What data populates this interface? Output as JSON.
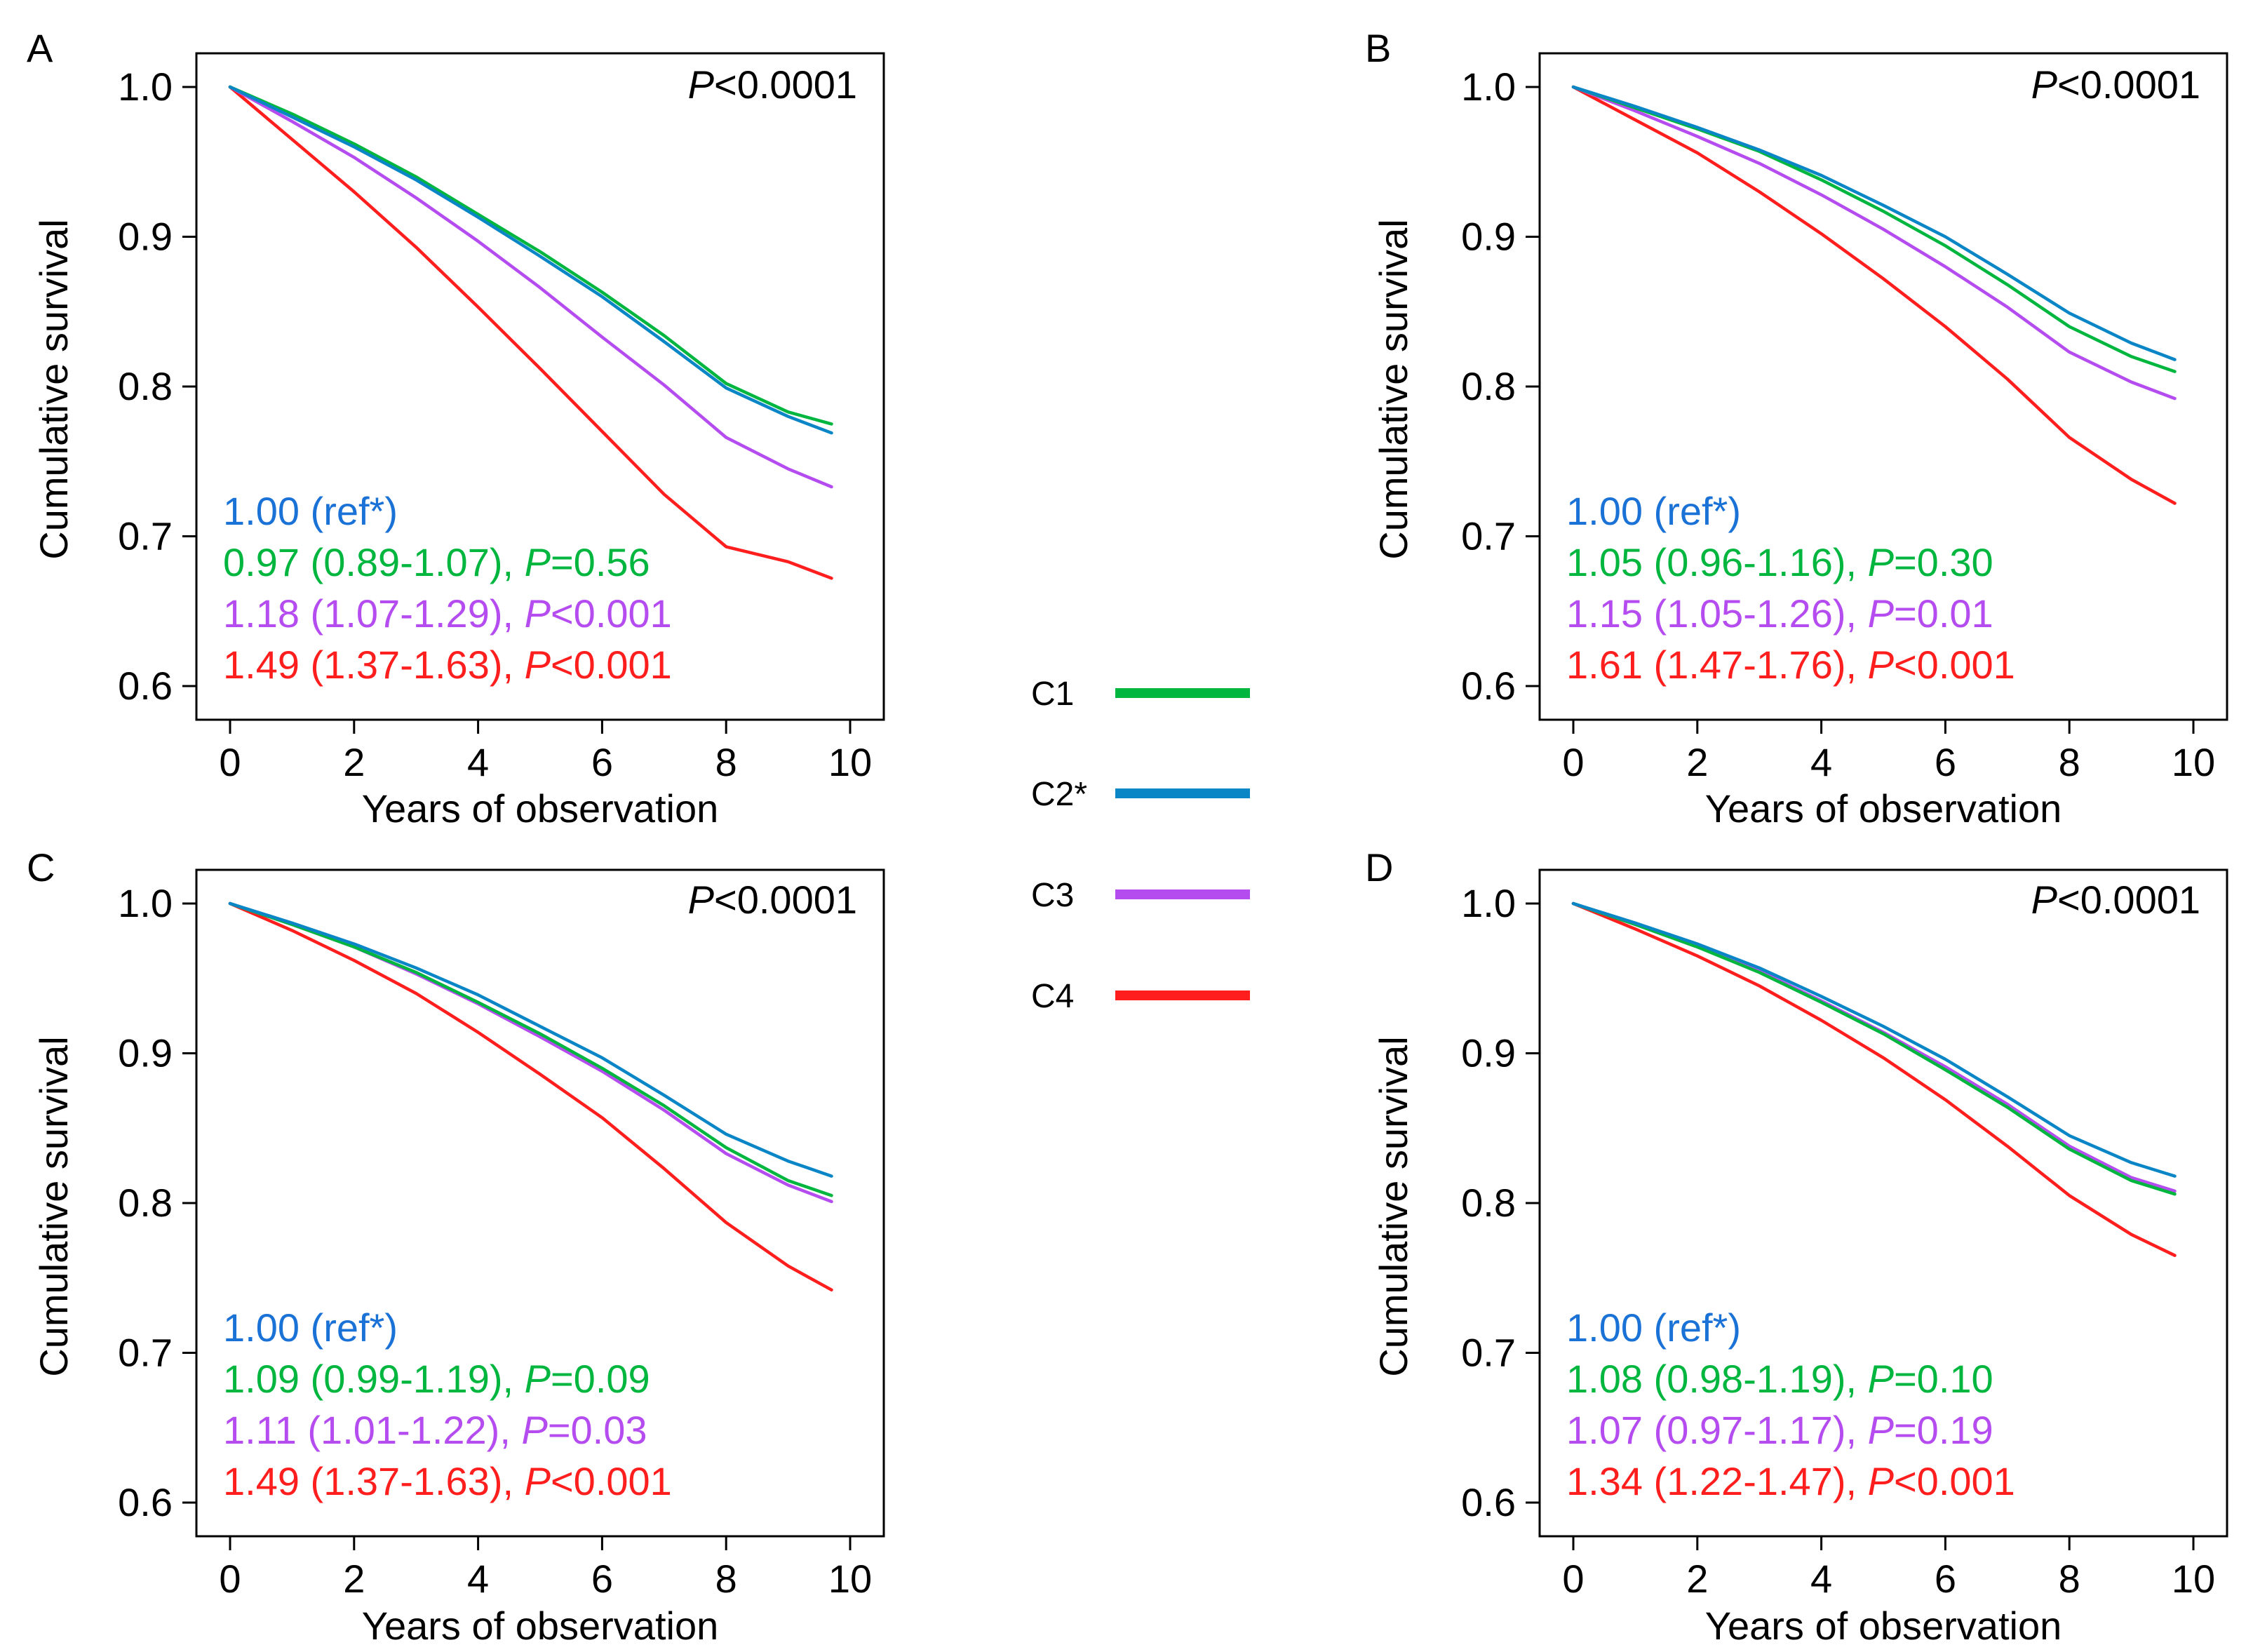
{
  "colors": {
    "C1": "#00b63f",
    "C2*": "#0a86c6",
    "C3": "#b44cf0",
    "C4": "#ff1e1e",
    "ref_text": "#1a72d6",
    "axis": "#000000"
  },
  "legend": {
    "items": [
      {
        "label": "C1",
        "series": "C1"
      },
      {
        "label": "C2*",
        "series": "C2*"
      },
      {
        "label": "C3",
        "series": "C3"
      },
      {
        "label": "C4",
        "series": "C4"
      }
    ]
  },
  "chart_data": [
    {
      "panel": "A",
      "type": "line",
      "title": "",
      "xlabel": "Years of observation",
      "ylabel": "Cumulative survival",
      "xlim": [
        0,
        10
      ],
      "ylim": [
        0.6,
        1.0
      ],
      "xticks": [
        0,
        2,
        4,
        6,
        8,
        10
      ],
      "yticks": [
        0.6,
        0.7,
        0.8,
        0.9,
        1.0
      ],
      "ytick_labels": [
        "0.6",
        "0.7",
        "0.8",
        "0.9",
        "1.0"
      ],
      "grid": false,
      "p_overall": {
        "letter": "P",
        "rest": "<0.0001"
      },
      "series": [
        {
          "name": "C1",
          "x": [
            0,
            1,
            2,
            3,
            4,
            5,
            6,
            7,
            8,
            9,
            9.7
          ],
          "y": [
            1.0,
            0.982,
            0.962,
            0.94,
            0.915,
            0.89,
            0.863,
            0.834,
            0.802,
            0.783,
            0.775
          ]
        },
        {
          "name": "C2*",
          "x": [
            0,
            1,
            2,
            3,
            4,
            5,
            6,
            7,
            8,
            9,
            9.7
          ],
          "y": [
            1.0,
            0.98,
            0.96,
            0.938,
            0.913,
            0.887,
            0.86,
            0.83,
            0.799,
            0.78,
            0.769
          ]
        },
        {
          "name": "C3",
          "x": [
            0,
            1,
            2,
            3,
            4,
            5,
            6,
            7,
            8,
            9,
            9.7
          ],
          "y": [
            1.0,
            0.977,
            0.953,
            0.926,
            0.897,
            0.866,
            0.833,
            0.801,
            0.766,
            0.745,
            0.733
          ]
        },
        {
          "name": "C4",
          "x": [
            0,
            1,
            2,
            3,
            4,
            5,
            6,
            7,
            8,
            9,
            9.7
          ],
          "y": [
            1.0,
            0.965,
            0.93,
            0.893,
            0.853,
            0.812,
            0.77,
            0.728,
            0.693,
            0.683,
            0.672
          ]
        }
      ],
      "annotations": [
        {
          "series": "C2*",
          "hr": "1.00",
          "ci": "(ref*)",
          "p_letter": "",
          "p_value": ""
        },
        {
          "series": "C1",
          "hr": "0.97",
          "ci": "(0.89-1.07),",
          "p_letter": "P",
          "p_value": "=0.56"
        },
        {
          "series": "C3",
          "hr": "1.18",
          "ci": "(1.07-1.29),",
          "p_letter": "P",
          "p_value": "<0.001"
        },
        {
          "series": "C4",
          "hr": "1.49",
          "ci": "(1.37-1.63),",
          "p_letter": "P",
          "p_value": "<0.001"
        }
      ]
    },
    {
      "panel": "B",
      "type": "line",
      "title": "",
      "xlabel": "Years of observation",
      "ylabel": "Cumulative survival",
      "xlim": [
        0,
        10
      ],
      "ylim": [
        0.6,
        1.0
      ],
      "xticks": [
        0,
        2,
        4,
        6,
        8,
        10
      ],
      "yticks": [
        0.6,
        0.7,
        0.8,
        0.9,
        1.0
      ],
      "ytick_labels": [
        "0.6",
        "0.7",
        "0.8",
        "0.9",
        "1.0"
      ],
      "grid": false,
      "p_overall": {
        "letter": "P",
        "rest": "<0.0001"
      },
      "series": [
        {
          "name": "C1",
          "x": [
            0,
            1,
            2,
            3,
            4,
            5,
            6,
            7,
            8,
            9,
            9.7
          ],
          "y": [
            1.0,
            0.986,
            0.972,
            0.957,
            0.938,
            0.917,
            0.894,
            0.868,
            0.84,
            0.82,
            0.81
          ]
        },
        {
          "name": "C2*",
          "x": [
            0,
            1,
            2,
            3,
            4,
            5,
            6,
            7,
            8,
            9,
            9.7
          ],
          "y": [
            1.0,
            0.987,
            0.973,
            0.958,
            0.941,
            0.921,
            0.9,
            0.875,
            0.849,
            0.829,
            0.818
          ]
        },
        {
          "name": "C3",
          "x": [
            0,
            1,
            2,
            3,
            4,
            5,
            6,
            7,
            8,
            9,
            9.7
          ],
          "y": [
            1.0,
            0.984,
            0.967,
            0.949,
            0.928,
            0.905,
            0.88,
            0.853,
            0.823,
            0.803,
            0.792
          ]
        },
        {
          "name": "C4",
          "x": [
            0,
            1,
            2,
            3,
            4,
            5,
            6,
            7,
            8,
            9,
            9.7
          ],
          "y": [
            1.0,
            0.978,
            0.956,
            0.93,
            0.902,
            0.872,
            0.84,
            0.805,
            0.766,
            0.738,
            0.722
          ]
        }
      ],
      "annotations": [
        {
          "series": "C2*",
          "hr": "1.00",
          "ci": "(ref*)",
          "p_letter": "",
          "p_value": ""
        },
        {
          "series": "C1",
          "hr": "1.05",
          "ci": "(0.96-1.16),",
          "p_letter": "P",
          "p_value": "=0.30"
        },
        {
          "series": "C3",
          "hr": "1.15",
          "ci": "(1.05-1.26),",
          "p_letter": "P",
          "p_value": "=0.01"
        },
        {
          "series": "C4",
          "hr": "1.61",
          "ci": "(1.47-1.76),",
          "p_letter": "P",
          "p_value": "<0.001"
        }
      ]
    },
    {
      "panel": "C",
      "type": "line",
      "title": "",
      "xlabel": "Years of observation",
      "ylabel": "Cumulative survival",
      "xlim": [
        0,
        10
      ],
      "ylim": [
        0.6,
        1.0
      ],
      "xticks": [
        0,
        2,
        4,
        6,
        8,
        10
      ],
      "yticks": [
        0.6,
        0.7,
        0.8,
        0.9,
        1.0
      ],
      "ytick_labels": [
        "0.6",
        "0.7",
        "0.8",
        "0.9",
        "1.0"
      ],
      "grid": false,
      "p_overall": {
        "letter": "P",
        "rest": "<0.0001"
      },
      "series": [
        {
          "name": "C1",
          "x": [
            0,
            1,
            2,
            3,
            4,
            5,
            6,
            7,
            8,
            9,
            9.7
          ],
          "y": [
            1.0,
            0.986,
            0.971,
            0.954,
            0.934,
            0.913,
            0.89,
            0.865,
            0.837,
            0.815,
            0.805
          ]
        },
        {
          "name": "C2*",
          "x": [
            0,
            1,
            2,
            3,
            4,
            5,
            6,
            7,
            8,
            9,
            9.7
          ],
          "y": [
            1.0,
            0.987,
            0.973,
            0.957,
            0.939,
            0.918,
            0.897,
            0.872,
            0.846,
            0.828,
            0.818
          ]
        },
        {
          "name": "C3",
          "x": [
            0,
            1,
            2,
            3,
            4,
            5,
            6,
            7,
            8,
            9,
            9.7
          ],
          "y": [
            1.0,
            0.986,
            0.971,
            0.953,
            0.933,
            0.911,
            0.888,
            0.862,
            0.833,
            0.812,
            0.801
          ]
        },
        {
          "name": "C4",
          "x": [
            0,
            1,
            2,
            3,
            4,
            5,
            6,
            7,
            8,
            9,
            9.7
          ],
          "y": [
            1.0,
            0.982,
            0.962,
            0.94,
            0.914,
            0.886,
            0.857,
            0.823,
            0.787,
            0.758,
            0.742
          ]
        }
      ],
      "annotations": [
        {
          "series": "C2*",
          "hr": "1.00",
          "ci": "(ref*)",
          "p_letter": "",
          "p_value": ""
        },
        {
          "series": "C1",
          "hr": "1.09",
          "ci": "(0.99-1.19),",
          "p_letter": "P",
          "p_value": "=0.09"
        },
        {
          "series": "C3",
          "hr": "1.11",
          "ci": "(1.01-1.22),",
          "p_letter": "P",
          "p_value": "=0.03"
        },
        {
          "series": "C4",
          "hr": "1.49",
          "ci": "(1.37-1.63),",
          "p_letter": "P",
          "p_value": "<0.001"
        }
      ]
    },
    {
      "panel": "D",
      "type": "line",
      "title": "",
      "xlabel": "Years of observation",
      "ylabel": "Cumulative survival",
      "xlim": [
        0,
        10
      ],
      "ylim": [
        0.6,
        1.0
      ],
      "xticks": [
        0,
        2,
        4,
        6,
        8,
        10
      ],
      "yticks": [
        0.6,
        0.7,
        0.8,
        0.9,
        1.0
      ],
      "ytick_labels": [
        "0.6",
        "0.7",
        "0.8",
        "0.9",
        "1.0"
      ],
      "grid": false,
      "p_overall": {
        "letter": "P",
        "rest": "<0.0001"
      },
      "series": [
        {
          "name": "C1",
          "x": [
            0,
            1,
            2,
            3,
            4,
            5,
            6,
            7,
            8,
            9,
            9.7
          ],
          "y": [
            1.0,
            0.986,
            0.971,
            0.954,
            0.934,
            0.913,
            0.889,
            0.864,
            0.836,
            0.815,
            0.806
          ]
        },
        {
          "name": "C2*",
          "x": [
            0,
            1,
            2,
            3,
            4,
            5,
            6,
            7,
            8,
            9,
            9.7
          ],
          "y": [
            1.0,
            0.987,
            0.973,
            0.957,
            0.938,
            0.918,
            0.896,
            0.871,
            0.845,
            0.827,
            0.818
          ]
        },
        {
          "name": "C3",
          "x": [
            0,
            1,
            2,
            3,
            4,
            5,
            6,
            7,
            8,
            9,
            9.7
          ],
          "y": [
            1.0,
            0.986,
            0.971,
            0.955,
            0.935,
            0.914,
            0.891,
            0.866,
            0.838,
            0.817,
            0.808
          ]
        },
        {
          "name": "C4",
          "x": [
            0,
            1,
            2,
            3,
            4,
            5,
            6,
            7,
            8,
            9,
            9.7
          ],
          "y": [
            1.0,
            0.983,
            0.965,
            0.945,
            0.922,
            0.897,
            0.869,
            0.838,
            0.805,
            0.779,
            0.765
          ]
        }
      ],
      "annotations": [
        {
          "series": "C2*",
          "hr": "1.00",
          "ci": "(ref*)",
          "p_letter": "",
          "p_value": ""
        },
        {
          "series": "C1",
          "hr": "1.08",
          "ci": "(0.98-1.19),",
          "p_letter": "P",
          "p_value": "=0.10"
        },
        {
          "series": "C3",
          "hr": "1.07",
          "ci": "(0.97-1.17),",
          "p_letter": "P",
          "p_value": "=0.19"
        },
        {
          "series": "C4",
          "hr": "1.34",
          "ci": "(1.22-1.47),",
          "p_letter": "P",
          "p_value": "<0.001"
        }
      ]
    }
  ]
}
